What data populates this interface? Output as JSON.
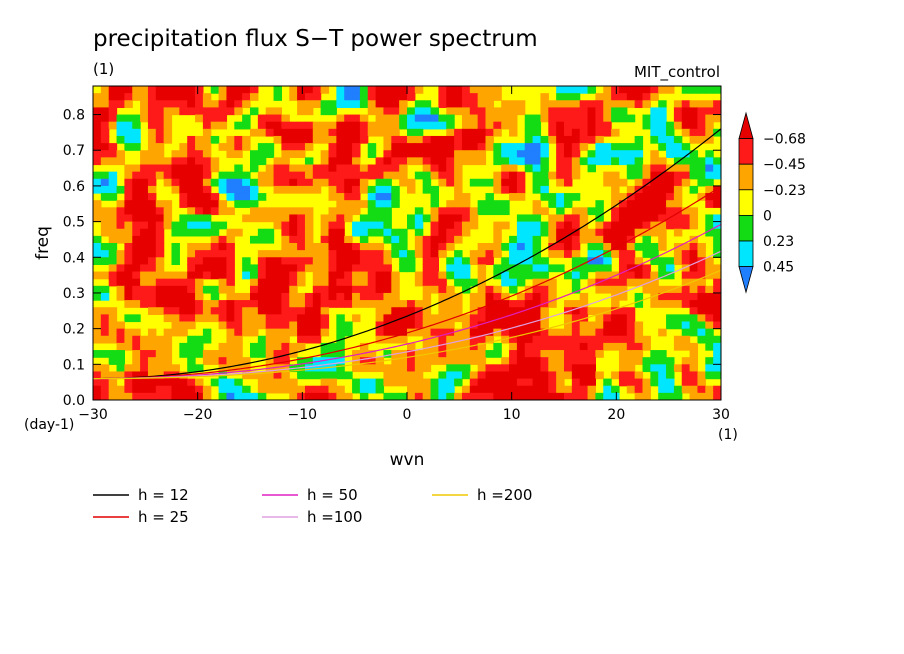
{
  "chart_data": {
    "type": "heatmap",
    "title": "precipitation flux S−T power spectrum",
    "units_label": "(1)",
    "model_label": "MIT_control",
    "xlabel": "wvn",
    "ylabel": "freq",
    "x_units": "(1)",
    "y_units": "(day-1)",
    "xlim": [
      -30,
      30
    ],
    "ylim": [
      0,
      0.88
    ],
    "x_ticks": [
      -30,
      -20,
      -10,
      0,
      10,
      20,
      30
    ],
    "x_tick_labels": [
      "−30",
      "−20",
      "−10",
      "0",
      "10",
      "20",
      "30"
    ],
    "y_ticks": [
      0,
      0.1,
      0.2,
      0.3,
      0.4,
      0.5,
      0.6,
      0.7,
      0.8
    ],
    "y_tick_labels": [
      "0.0",
      "0.1",
      "0.2",
      "0.3",
      "0.4",
      "0.5",
      "0.6",
      "0.7",
      "0.8"
    ],
    "colorbar": {
      "levels": [
        -0.68,
        -0.45,
        -0.23,
        0,
        0.23,
        0.45
      ],
      "labels": [
        "−0.68",
        "−0.45",
        "−0.23",
        "0",
        "0.23",
        "0.45"
      ],
      "colors": [
        "#1f7fff",
        "#00e6ff",
        "#14dc14",
        "#ffff00",
        "#ffa500",
        "#ff1a1a",
        "#e60000"
      ]
    },
    "series": [
      {
        "name": "h = 12",
        "equivalent_depth": 12,
        "color": "#000000"
      },
      {
        "name": "h = 25",
        "equivalent_depth": 25,
        "color": "#e00000"
      },
      {
        "name": "h = 50",
        "equivalent_depth": 50,
        "color": "#e020c0"
      },
      {
        "name": "h =100",
        "equivalent_depth": 100,
        "color": "#e0a0e0"
      },
      {
        "name": "h =200",
        "equivalent_depth": 200,
        "color": "#f0c800"
      }
    ],
    "grid": false,
    "legend_position": "bottom-left"
  }
}
